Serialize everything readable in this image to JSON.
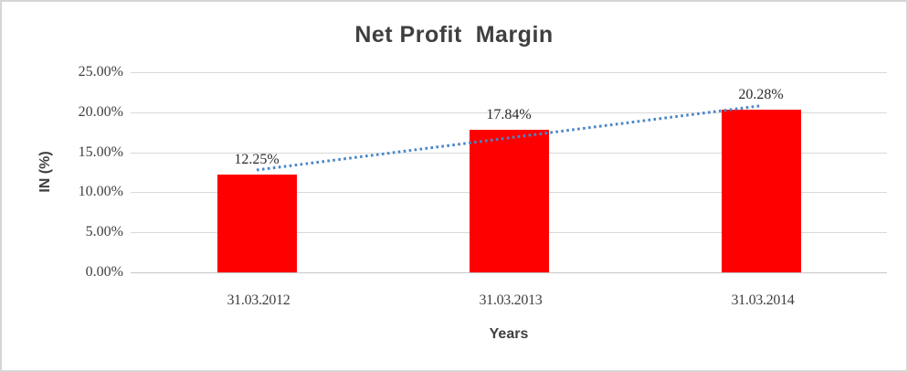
{
  "chart": {
    "title": "Net Profit  Margin",
    "y_axis_title": "IN (%)",
    "x_axis_title": "Years"
  },
  "chart_data": {
    "type": "bar",
    "title": "Net Profit Margin",
    "categories": [
      "31.03.2012",
      "31.03.2013",
      "31.03.2014"
    ],
    "values": [
      12.25,
      17.84,
      20.28
    ],
    "data_labels": [
      "12.25%",
      "17.84%",
      "20.28%"
    ],
    "xlabel": "Years",
    "ylabel": "IN (%)",
    "ylim": [
      0,
      25
    ],
    "y_tick_step": 5,
    "y_ticks_top_down": [
      "25.00%",
      "20.00%",
      "15.00%",
      "10.00%",
      "5.00%",
      "0.00%"
    ],
    "grid": true,
    "legend": false,
    "bar_color": "#ff0000",
    "gridline_color": "#d9d9d9",
    "trendline": {
      "type": "linear",
      "style": "dotted",
      "color": "#4a86c8",
      "fit_values": [
        12.78,
        20.81
      ]
    }
  }
}
